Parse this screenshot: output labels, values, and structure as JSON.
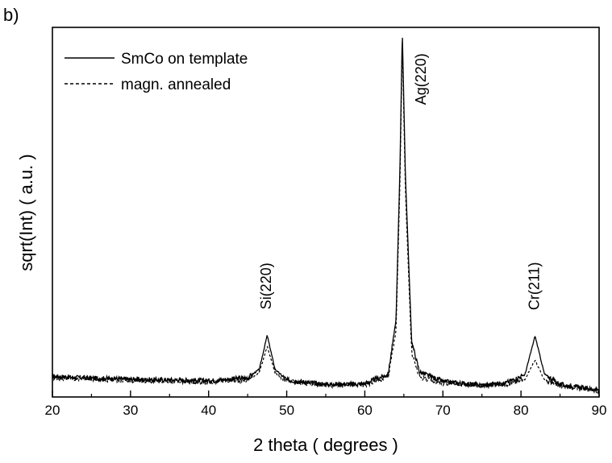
{
  "panel_label": "b)",
  "chart_data": {
    "type": "line",
    "xlabel": "2 theta ( degrees )",
    "ylabel": "sqrt(Int) ( a.u. )",
    "xlim": [
      20,
      90
    ],
    "ylim": [
      0,
      100
    ],
    "x_ticks": [
      20,
      30,
      40,
      50,
      60,
      70,
      80,
      90
    ],
    "y_ticks_shown": false,
    "grid": false,
    "legend": "top-left",
    "series": [
      {
        "name": "SmCo on template",
        "style": "solid",
        "color": "#000000",
        "baseline": 4.5,
        "peaks": [
          {
            "x": 47.5,
            "height": 14,
            "width": 0.9
          },
          {
            "x": 64.8,
            "height": 95,
            "width": 0.55
          },
          {
            "x": 81.8,
            "height": 14,
            "width": 0.75
          }
        ],
        "points": [
          [
            20,
            5.6
          ],
          [
            25,
            5.1
          ],
          [
            30,
            4.8
          ],
          [
            35,
            4.6
          ],
          [
            40,
            4.4
          ],
          [
            45,
            5.2
          ],
          [
            46.5,
            7.5
          ],
          [
            47.5,
            16.7
          ],
          [
            48.5,
            7.5
          ],
          [
            50,
            4.6
          ],
          [
            55,
            3.4
          ],
          [
            60,
            3.6
          ],
          [
            63,
            6.2
          ],
          [
            64,
            21
          ],
          [
            64.5,
            62
          ],
          [
            64.8,
            99
          ],
          [
            65.2,
            60
          ],
          [
            66,
            15
          ],
          [
            67,
            6.8
          ],
          [
            70,
            4.2
          ],
          [
            75,
            3.2
          ],
          [
            78,
            3.8
          ],
          [
            80.5,
            6
          ],
          [
            81.8,
            16.5
          ],
          [
            83,
            6.2
          ],
          [
            85,
            3.4
          ],
          [
            90,
            1.8
          ]
        ]
      },
      {
        "name": "magn. annealed",
        "style": "dashed",
        "color": "#000000",
        "baseline": 4.2,
        "peaks": [
          {
            "x": 47.5,
            "height": 10.5,
            "width": 0.8
          },
          {
            "x": 64.8,
            "height": 92,
            "width": 0.5
          },
          {
            "x": 81.8,
            "height": 7.8,
            "width": 0.7
          }
        ],
        "points": [
          [
            20,
            5.2
          ],
          [
            25,
            4.8
          ],
          [
            30,
            4.5
          ],
          [
            35,
            4.3
          ],
          [
            40,
            4.1
          ],
          [
            45,
            4.6
          ],
          [
            46.5,
            6.6
          ],
          [
            47.5,
            13.7
          ],
          [
            48.5,
            6.6
          ],
          [
            50,
            4.2
          ],
          [
            55,
            3.2
          ],
          [
            60,
            3.3
          ],
          [
            63,
            5.4
          ],
          [
            64,
            18
          ],
          [
            64.5,
            58
          ],
          [
            64.8,
            96
          ],
          [
            65.2,
            56
          ],
          [
            66,
            12
          ],
          [
            67,
            5.4
          ],
          [
            70,
            3.8
          ],
          [
            75,
            3
          ],
          [
            78,
            3.4
          ],
          [
            80.5,
            4.8
          ],
          [
            81.8,
            10
          ],
          [
            83,
            4.6
          ],
          [
            85,
            3
          ],
          [
            90,
            1.6
          ]
        ]
      }
    ],
    "annotations": [
      {
        "text": "Si(220)",
        "x": 47.5,
        "y": 30,
        "rotation": -90
      },
      {
        "text": "Ag(220)",
        "x": 67.3,
        "y": 86,
        "rotation": -90
      },
      {
        "text": "Cr(211)",
        "x": 81.8,
        "y": 30,
        "rotation": -90
      }
    ]
  }
}
